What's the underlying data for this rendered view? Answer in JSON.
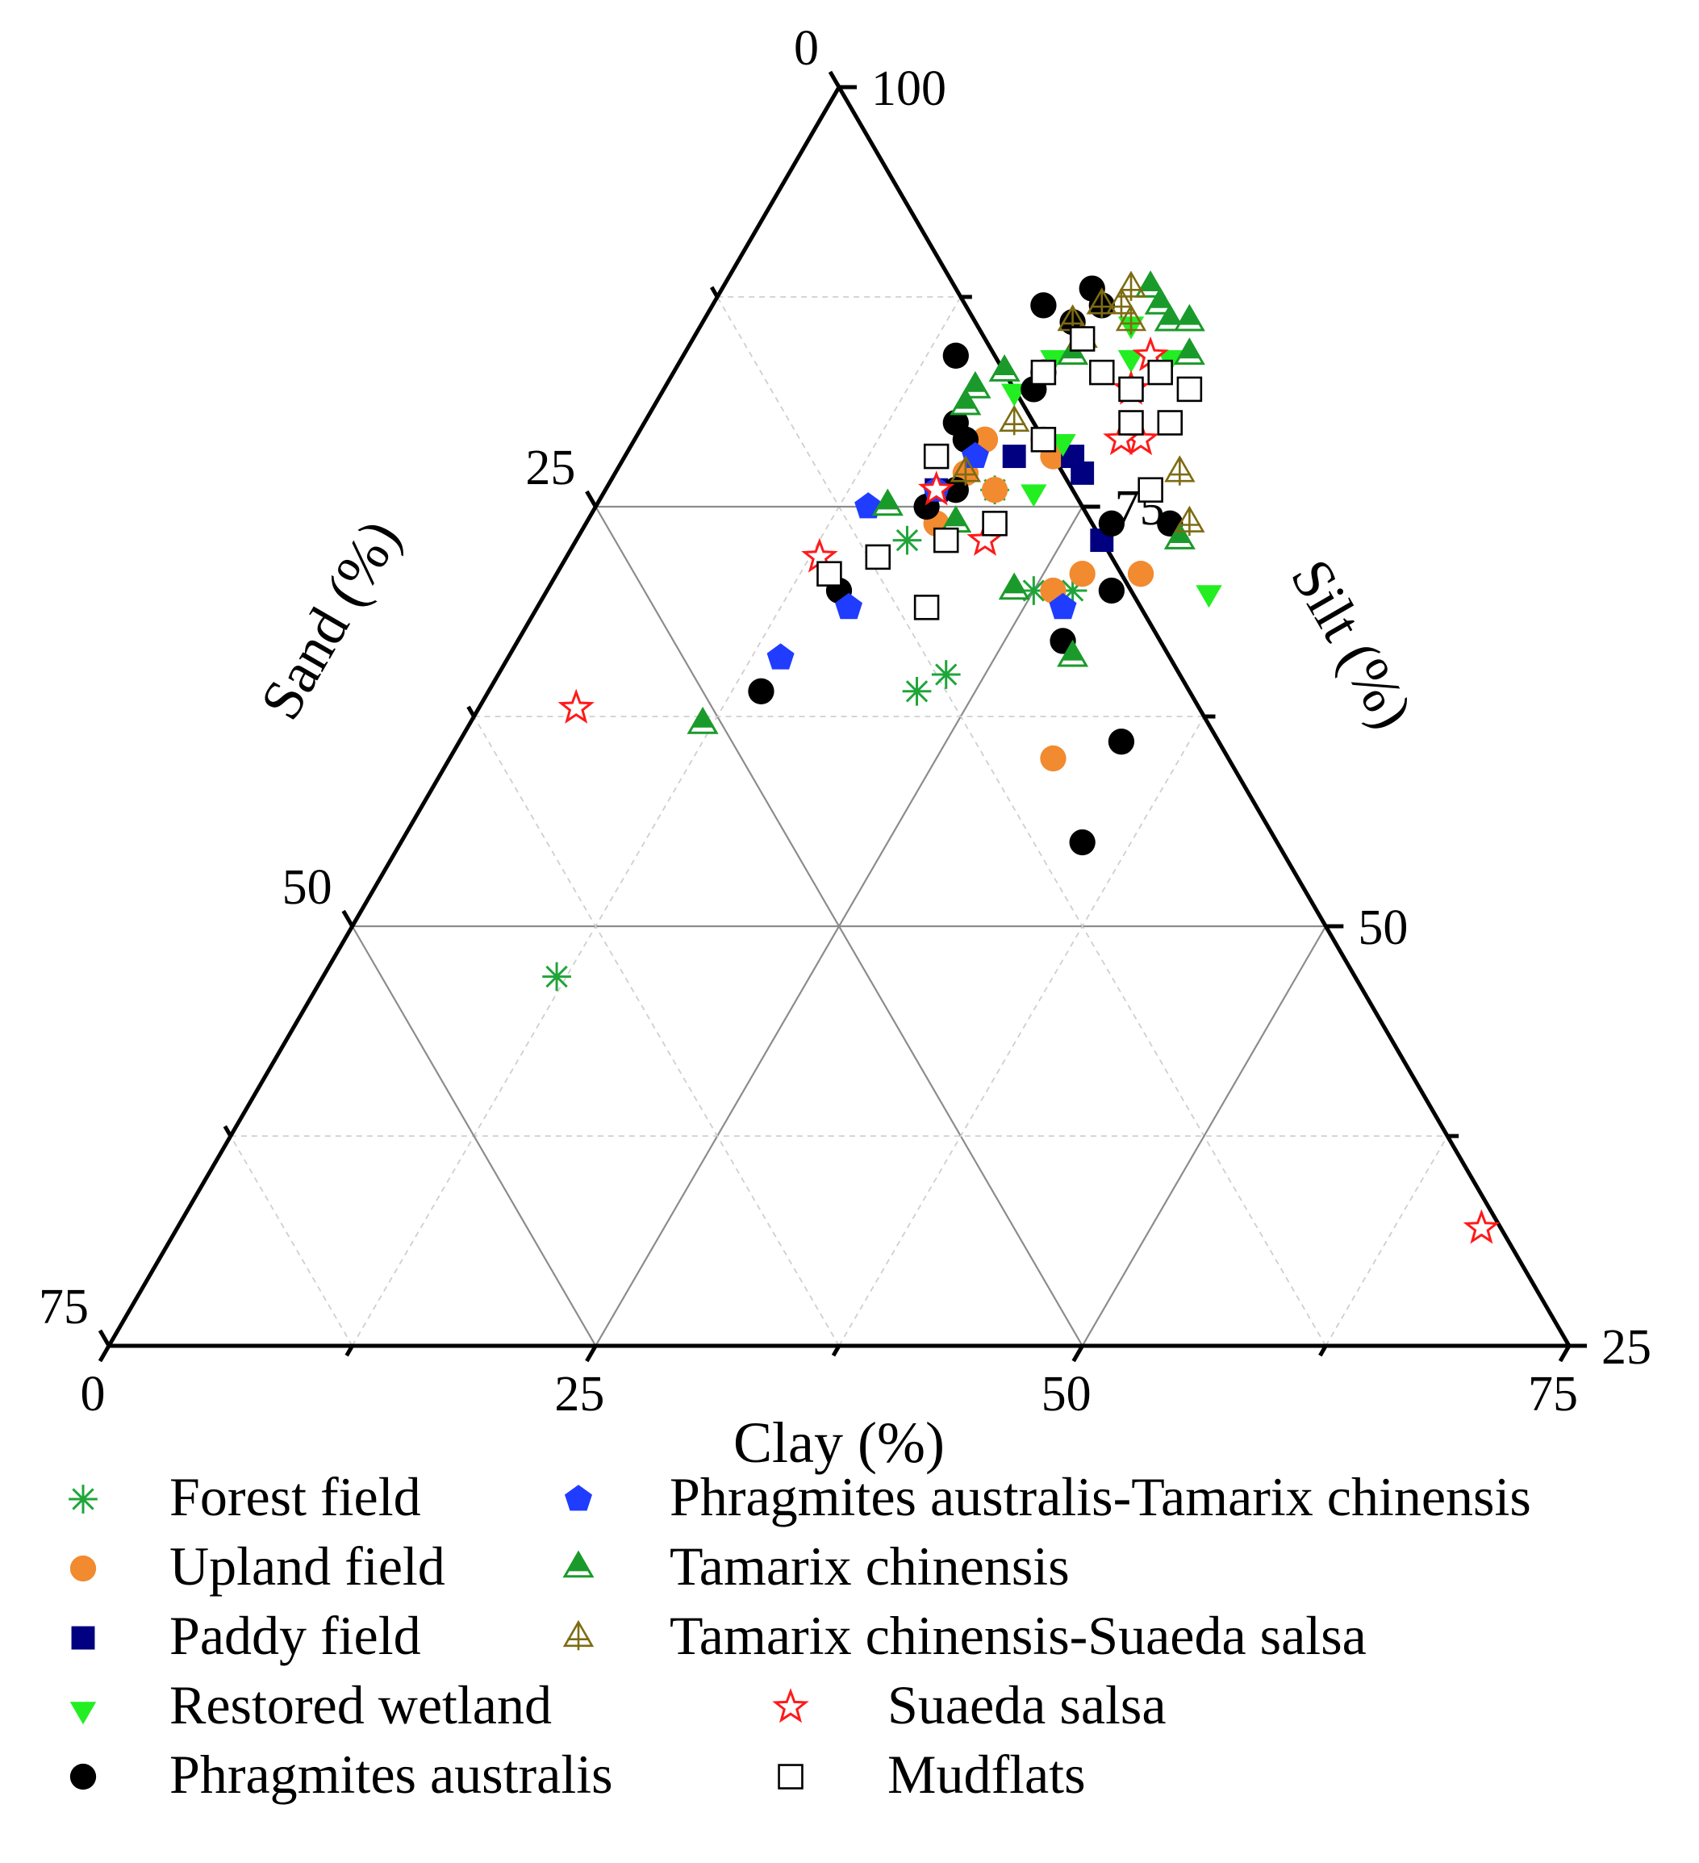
{
  "chart_data": {
    "type": "scatter",
    "subtype": "ternary",
    "title": "",
    "axes": {
      "clay": {
        "label": "Clay (%)",
        "range": [
          0,
          75
        ],
        "ticks": [
          0,
          25,
          50,
          75
        ],
        "tick_labels": [
          "0",
          "25",
          "50",
          "75"
        ]
      },
      "silt": {
        "label": "Silt (%)",
        "range": [
          25,
          100
        ],
        "ticks": [
          100,
          75,
          50,
          25
        ],
        "tick_labels": [
          "100",
          "75",
          "50",
          "25"
        ]
      },
      "sand": {
        "label": "Sand (%)",
        "range": [
          0,
          75
        ],
        "ticks": [
          0,
          25,
          50,
          75
        ],
        "tick_labels": [
          "0",
          "25",
          "50",
          "75"
        ]
      }
    },
    "grid": true,
    "legend_position": "bottom",
    "series": [
      {
        "name": "Forest field",
        "marker": "asterisk",
        "color": "#1fa53a",
        "points": [
          [
            23,
            65
          ],
          [
            22,
            64
          ],
          [
            20,
            76
          ],
          [
            27,
            70
          ],
          [
            25,
            70
          ],
          [
            17,
            73
          ],
          [
            12,
            47
          ]
        ]
      },
      {
        "name": "Upland field",
        "marker": "circle",
        "color": "#f28a30",
        "points": [
          [
            20,
            76
          ],
          [
            22,
            78
          ],
          [
            21,
            79
          ],
          [
            18,
            77
          ],
          [
            26,
            70
          ],
          [
            27,
            71
          ],
          [
            18,
            74
          ],
          [
            18,
            79
          ],
          [
            31,
            60
          ],
          [
            30,
            71
          ]
        ]
      },
      {
        "name": "Paddy field",
        "marker": "square",
        "color": "#000080",
        "points": [
          [
            20,
            78
          ],
          [
            24,
            77
          ],
          [
            17,
            76
          ],
          [
            23,
            78
          ],
          [
            27,
            73
          ],
          [
            25,
            80
          ]
        ]
      },
      {
        "name": "Restored wetland",
        "marker": "triangle-down",
        "color": "#22ee22",
        "points": [
          [
            23,
            84
          ],
          [
            22,
            86
          ],
          [
            24,
            84
          ],
          [
            19,
            84
          ],
          [
            18,
            82
          ],
          [
            22,
            76
          ],
          [
            22,
            79
          ],
          [
            34,
            70
          ],
          [
            25,
            84
          ]
        ]
      },
      {
        "name": "Phragmites australis",
        "marker": "circle",
        "color": "#000000",
        "points": [
          [
            17,
            87
          ],
          [
            19,
            86
          ],
          [
            19,
            83
          ],
          [
            14,
            84
          ],
          [
            19,
            82
          ],
          [
            16,
            80
          ],
          [
            17,
            79
          ],
          [
            17,
            75
          ],
          [
            27,
            74
          ],
          [
            29,
            70
          ],
          [
            15,
            70
          ],
          [
            28,
            67
          ],
          [
            14,
            64
          ],
          [
            34,
            61
          ],
          [
            35,
            55
          ],
          [
            30,
            74
          ],
          [
            18,
            76
          ],
          [
            20,
            87
          ],
          [
            19,
            88
          ]
        ]
      },
      {
        "name": "Phragmites australis-Tamarix chinensis",
        "marker": "pentagon",
        "color": "#1f3cff",
        "points": [
          [
            16,
            69
          ],
          [
            14,
            66
          ],
          [
            17,
            76
          ],
          [
            27,
            69
          ],
          [
            14,
            75
          ],
          [
            18,
            78
          ]
        ]
      },
      {
        "name": "Tamarix chinensis",
        "marker": "triangle-up",
        "color": "#1a9a2a",
        "points": [
          [
            22,
            88
          ],
          [
            23,
            87
          ],
          [
            24,
            86
          ],
          [
            17,
            83
          ],
          [
            16,
            82
          ],
          [
            16,
            81
          ],
          [
            15,
            75
          ],
          [
            19,
            74
          ],
          [
            25,
            86
          ],
          [
            26,
            84
          ],
          [
            24,
            70
          ],
          [
            29,
            66
          ],
          [
            12,
            62
          ],
          [
            31,
            73
          ],
          [
            20,
            84
          ]
        ]
      },
      {
        "name": "Tamarix chinensis-Suaeda salsa",
        "marker": "triangle-up-cross",
        "color": "#7d6b12",
        "points": [
          [
            20,
            87
          ],
          [
            21,
            87
          ],
          [
            21,
            88
          ],
          [
            19,
            86
          ],
          [
            22,
            86
          ],
          [
            20,
            85
          ],
          [
            19,
            80
          ],
          [
            18,
            77
          ],
          [
            29,
            77
          ],
          [
            31,
            74
          ]
        ]
      },
      {
        "name": "Suaeda salsa",
        "marker": "star",
        "color": "#ff1a1a",
        "points": [
          [
            24,
            84
          ],
          [
            24,
            82
          ],
          [
            26,
            79
          ],
          [
            25,
            79
          ],
          [
            17,
            76
          ],
          [
            21,
            73
          ],
          [
            13,
            72
          ],
          [
            5,
            63
          ],
          [
            67,
            32
          ]
        ]
      },
      {
        "name": "Mudflats",
        "marker": "square-open",
        "color": "#000000",
        "points": [
          [
            20,
            85
          ],
          [
            19,
            83
          ],
          [
            24,
            82
          ],
          [
            25,
            83
          ],
          [
            25,
            80
          ],
          [
            21,
            79
          ],
          [
            27,
            82
          ],
          [
            27,
            80
          ],
          [
            16,
            78
          ],
          [
            21,
            74
          ],
          [
            19,
            73
          ],
          [
            16,
            72
          ],
          [
            14,
            71
          ],
          [
            20,
            69
          ],
          [
            28,
            76
          ],
          [
            22,
            83
          ]
        ]
      }
    ]
  }
}
